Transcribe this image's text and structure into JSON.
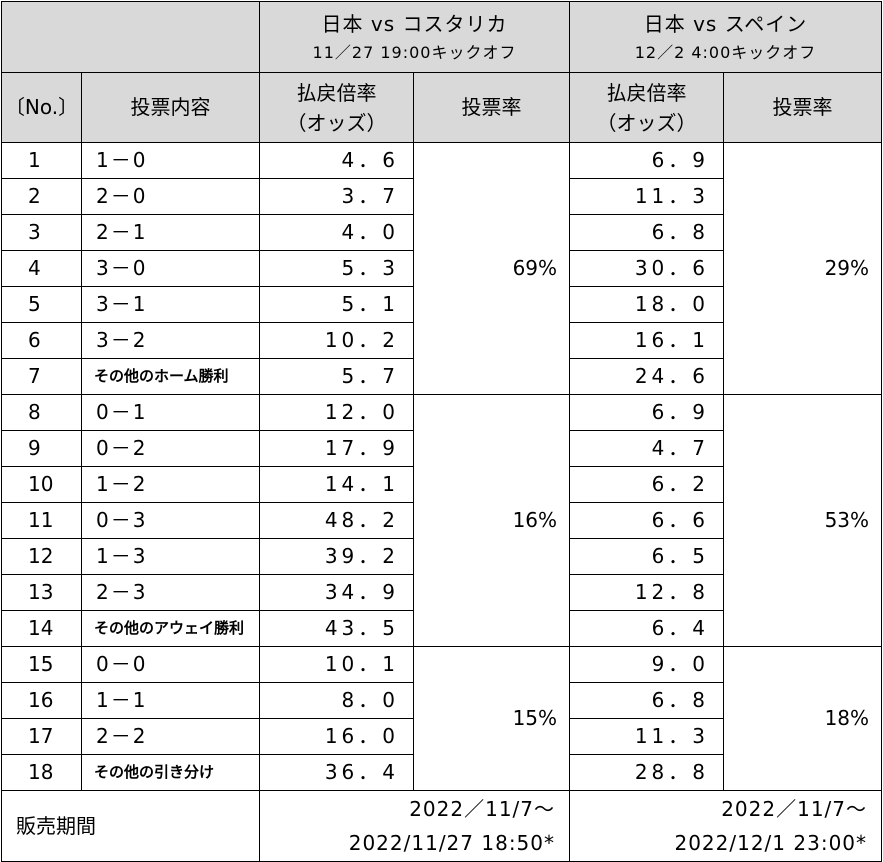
{
  "header": {
    "match1": {
      "title": "日本 vs コスタリカ",
      "kickoff": "11／27 19:00キックオフ"
    },
    "match2": {
      "title": "日本 vs スペイン",
      "kickoff": "12／2 4:00キックオフ"
    },
    "no_label": "〔No.〕",
    "content_label": "投票内容",
    "odds_label_1": "払戻倍率",
    "odds_label_2": "（オッズ）",
    "rate_label": "投票率"
  },
  "rows": [
    {
      "no": "1",
      "content": "1－0",
      "odds1": "4．6",
      "odds2": "6．9"
    },
    {
      "no": "2",
      "content": "2－0",
      "odds1": "3．7",
      "odds2": "11．3"
    },
    {
      "no": "3",
      "content": "2－1",
      "odds1": "4．0",
      "odds2": "6．8"
    },
    {
      "no": "4",
      "content": "3－0",
      "odds1": "5．3",
      "odds2": "30．6"
    },
    {
      "no": "5",
      "content": "3－1",
      "odds1": "5．1",
      "odds2": "18．0"
    },
    {
      "no": "6",
      "content": "3－2",
      "odds1": "10．2",
      "odds2": "16．1"
    },
    {
      "no": "7",
      "content": "その他のホーム勝利",
      "odds1": "5．7",
      "odds2": "24．6"
    },
    {
      "no": "8",
      "content": "0－1",
      "odds1": "12．0",
      "odds2": "6．9"
    },
    {
      "no": "9",
      "content": "0－2",
      "odds1": "17．9",
      "odds2": "4．7"
    },
    {
      "no": "10",
      "content": "1－2",
      "odds1": "14．1",
      "odds2": "6．2"
    },
    {
      "no": "11",
      "content": "0－3",
      "odds1": "48．2",
      "odds2": "6．6"
    },
    {
      "no": "12",
      "content": "1－3",
      "odds1": "39．2",
      "odds2": "6．5"
    },
    {
      "no": "13",
      "content": "2－3",
      "odds1": "34．9",
      "odds2": "12．8"
    },
    {
      "no": "14",
      "content": "その他のアウェイ勝利",
      "odds1": "43．5",
      "odds2": "6．4"
    },
    {
      "no": "15",
      "content": "0－0",
      "odds1": "10．1",
      "odds2": "9．0"
    },
    {
      "no": "16",
      "content": "1－1",
      "odds1": "8．0",
      "odds2": "6．8"
    },
    {
      "no": "17",
      "content": "2－2",
      "odds1": "16．0",
      "odds2": "11．3"
    },
    {
      "no": "18",
      "content": "その他の引き分け",
      "odds1": "36．4",
      "odds2": "28．8"
    }
  ],
  "rates": {
    "home": {
      "m1": "69%",
      "m2": "29%"
    },
    "away": {
      "m1": "16%",
      "m2": "53%"
    },
    "draw": {
      "m1": "15%",
      "m2": "18%"
    }
  },
  "sale": {
    "label": "販売期間",
    "m1_start": "2022／11/7～",
    "m1_end": "2022/11/27 18:50*",
    "m2_start": "2022／11/7～",
    "m2_end": "2022/12/1 23:00*"
  },
  "colors": {
    "header_bg": "#d9d9d9",
    "border": "#000000"
  }
}
